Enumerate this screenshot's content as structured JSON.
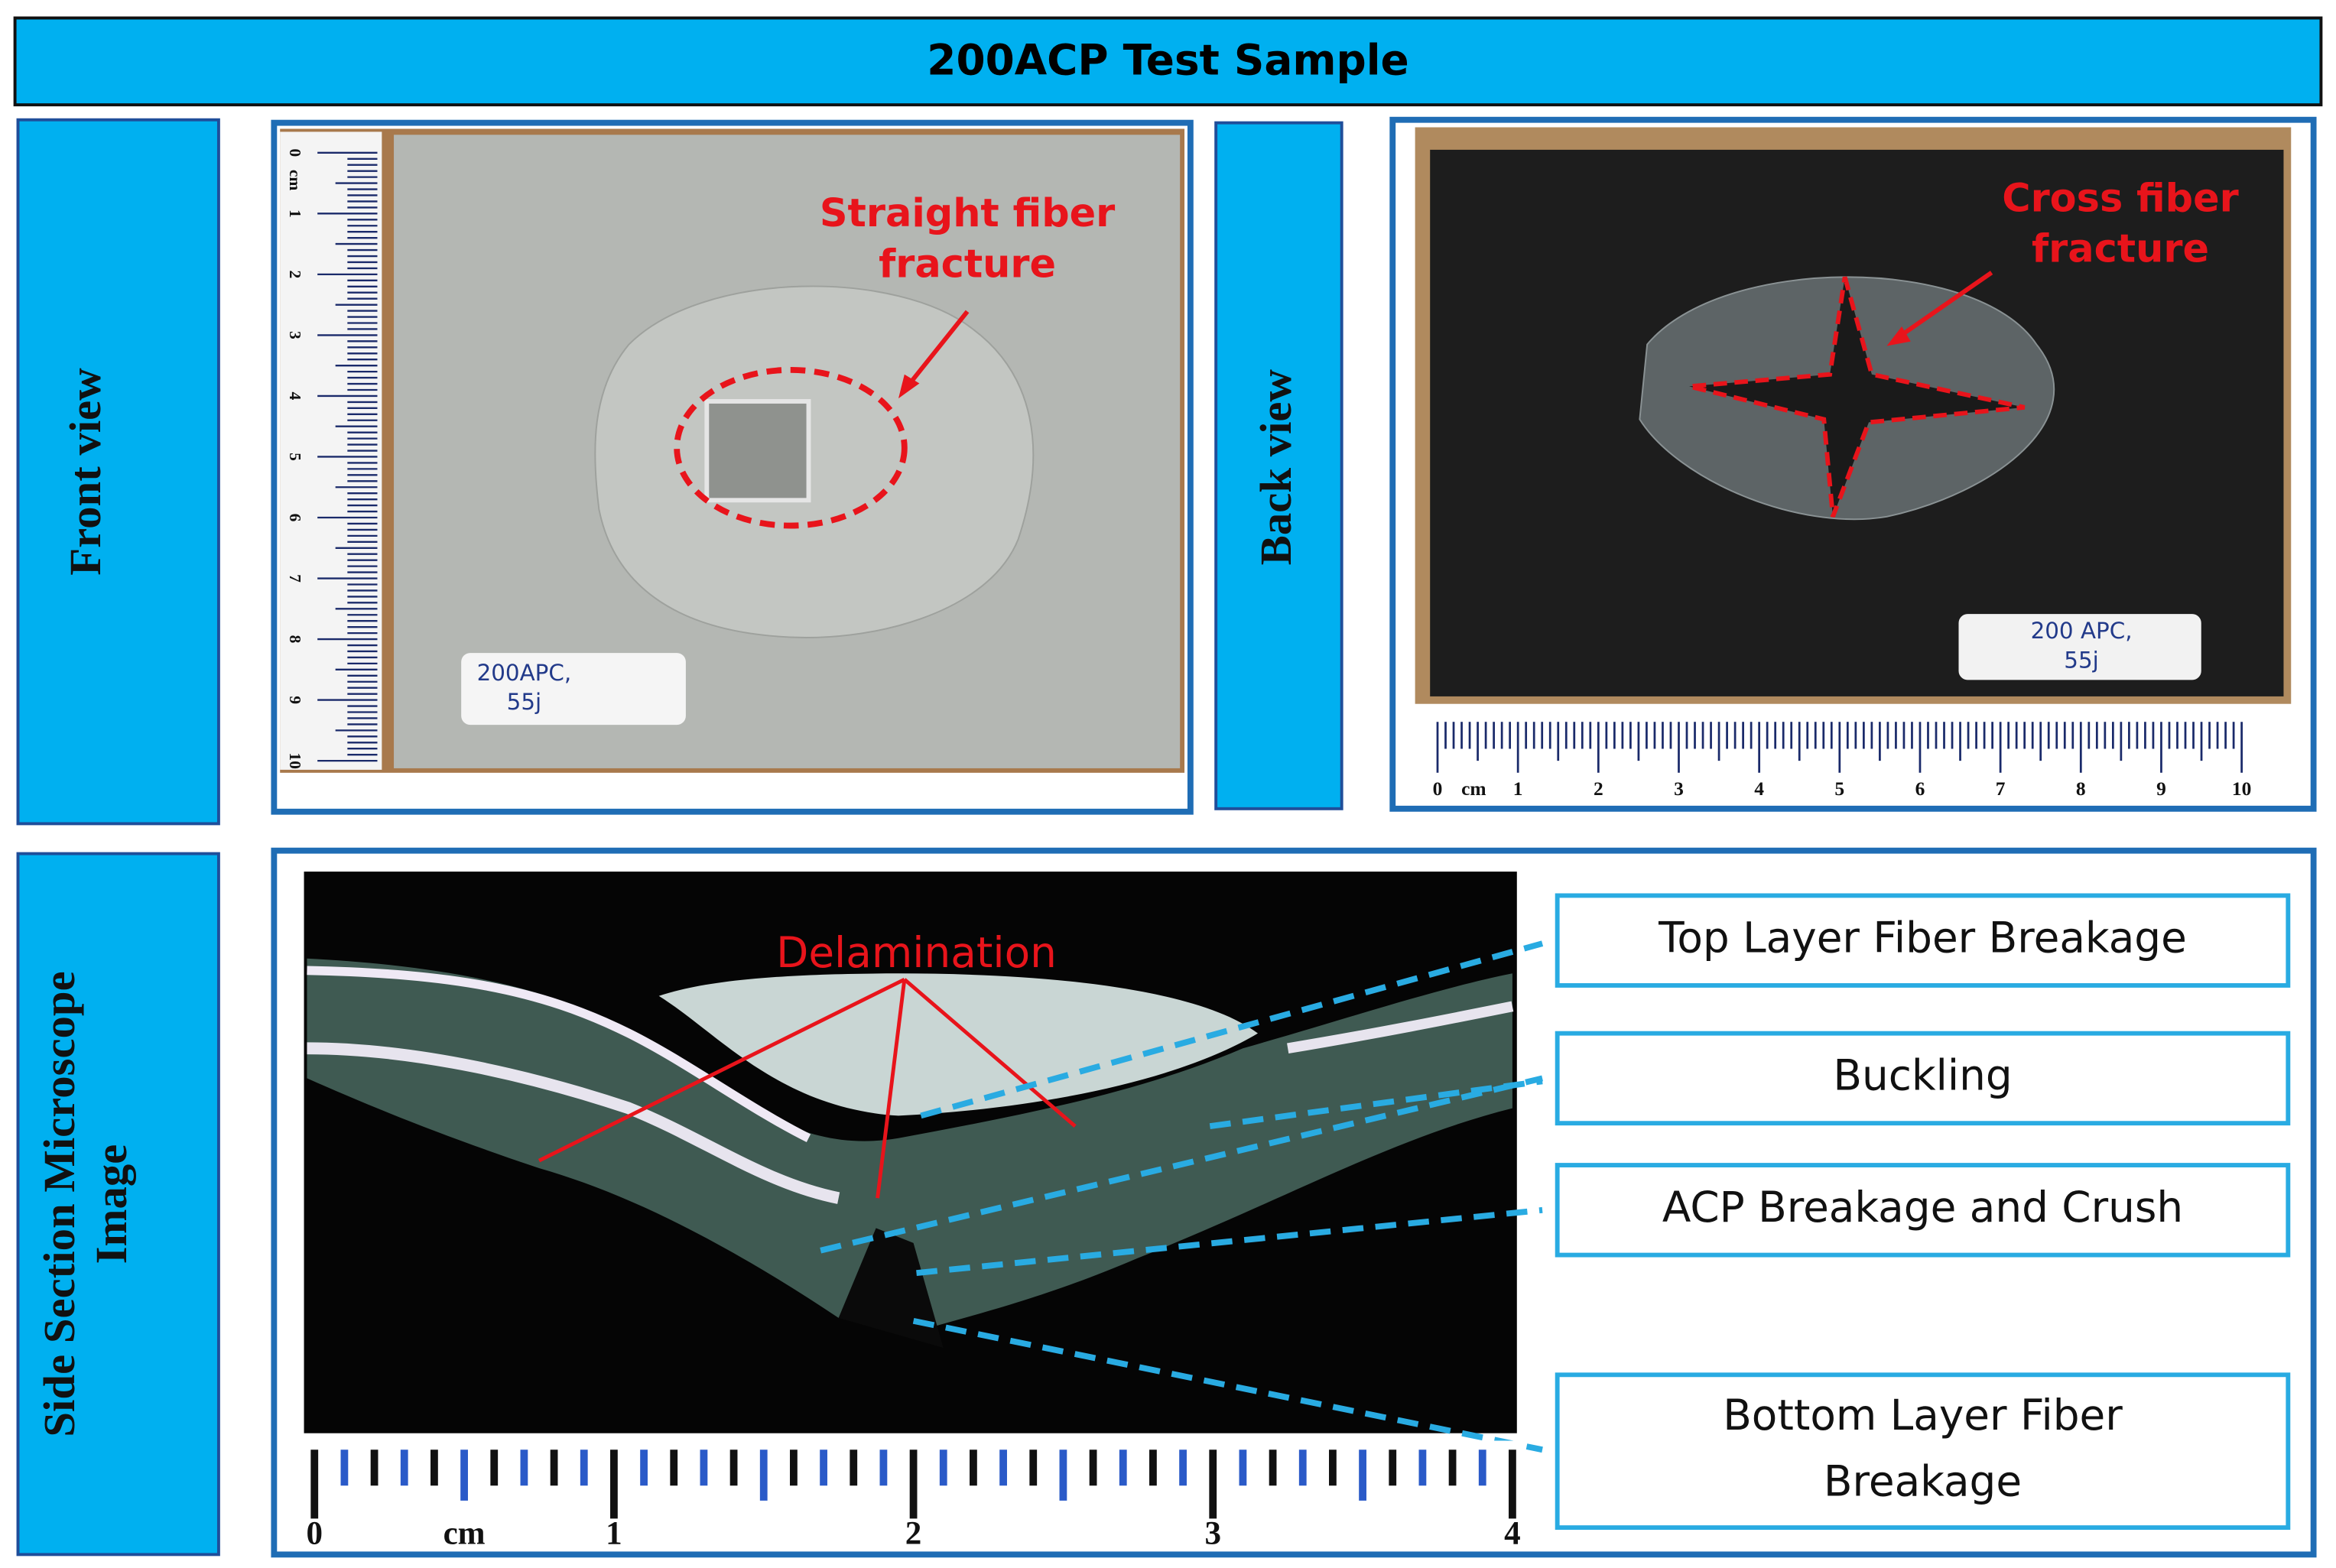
{
  "header": {
    "title": "200ACP Test Sample"
  },
  "row_labels": {
    "front": [
      "Front view"
    ],
    "back": [
      "Back view"
    ],
    "side": [
      "Side Section Microscope",
      "Image"
    ]
  },
  "front_panel": {
    "annotation": [
      "Straight fiber",
      "fracture"
    ],
    "sample_label": [
      "200APC,",
      "55j"
    ],
    "ruler_unit": "cm",
    "ruler_ticks": [
      0,
      1,
      2,
      3,
      4,
      5,
      6,
      7,
      8,
      9,
      10
    ]
  },
  "back_panel": {
    "annotation": [
      "Cross fiber",
      "fracture"
    ],
    "sample_label": [
      "200 APC,",
      "55j"
    ],
    "ruler_unit": "cm",
    "ruler_ticks": [
      0,
      1,
      2,
      3,
      4,
      5,
      6,
      7,
      8,
      9,
      10
    ]
  },
  "side_panel": {
    "annotation": "Delamination",
    "ruler_unit": "cm",
    "ruler_ticks": [
      0,
      1,
      2,
      3,
      4
    ],
    "callouts": [
      [
        "Top Layer Fiber Breakage"
      ],
      [
        "Buckling"
      ],
      [
        "ACP Breakage and Crush"
      ],
      [
        "Bottom Layer Fiber",
        "Breakage"
      ]
    ]
  }
}
